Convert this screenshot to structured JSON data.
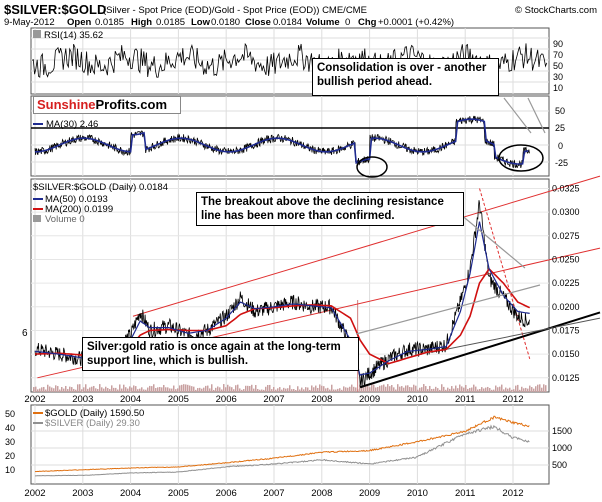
{
  "header": {
    "symbol": "$SILVER:$GOLD",
    "desc": " (Silver - Spot Price (EOD)/Gold - Spot Price (EOD)) CME/CME",
    "watermark": "© StockCharts.com",
    "date": "9-May-2012",
    "open_label": "Open",
    "open": "0.0185",
    "high_label": "High",
    "high": "0.0185",
    "low_label": "Low",
    "low": "0.0180",
    "close_label": "Close",
    "close": "0.0184",
    "volume_label": "Volume",
    "volume": "0",
    "chg_label": "Chg",
    "chg": "+0.0001 (+0.42%)"
  },
  "logo": {
    "part1": "Sunshine",
    "part2": "Profits.com"
  },
  "rsi_panel": {
    "legend": "RSI(14) 35.62",
    "ticks": [
      "90",
      "70",
      "50",
      "30",
      "10"
    ]
  },
  "macd_panel": {
    "legend": "MA(30) 2.46",
    "ticks": [
      "50",
      "25",
      "0",
      "-25"
    ]
  },
  "main_panel": {
    "legend_title": "$SILVER:$GOLD (Daily) 0.0184",
    "ma50": "MA(50) 0.0193",
    "ma200": "MA(200) 0.0199",
    "volume": "Volume 0",
    "left_tick": "6"
  },
  "bottom_panel": {
    "gold_legend": "$GOLD (Daily) 1590.50",
    "silver_legend": "$SILVER (Daily) 29.30",
    "ticks_left": [
      "50",
      "40",
      "30",
      "20",
      "10"
    ],
    "ticks_right": [
      "1500",
      "1000",
      "500"
    ]
  },
  "annotations": {
    "consolidation": "Consolidation is over - another bullish period ahead.",
    "breakout": "The breakout above the declining resistance line has been more than confirmed.",
    "support": "Silver:gold ratio is once again at the long-term support line, which is bullish."
  },
  "colors": {
    "gold": "#e07010",
    "silver": "#909090",
    "ma50": "#1e2a90",
    "ma200": "#d01010",
    "price": "#000000",
    "resistance": "#e02020"
  },
  "chart_data": {
    "type": "line",
    "title": "$SILVER:$GOLD",
    "x_ticks": [
      "2002",
      "2003",
      "2004",
      "2005",
      "2006",
      "2007",
      "2008",
      "2009",
      "2010",
      "2011",
      "2012"
    ],
    "y_ticks": [
      "0.0325",
      "0.0300",
      "0.0275",
      "0.0250",
      "0.0225",
      "0.0200",
      "0.0175",
      "0.0150",
      "0.0125"
    ],
    "ylim": [
      0.011,
      0.0335
    ],
    "x": [
      2002.0,
      2002.5,
      2003.0,
      2003.5,
      2004.0,
      2004.2,
      2004.4,
      2004.8,
      2005.2,
      2005.6,
      2006.0,
      2006.3,
      2006.6,
      2007.0,
      2007.4,
      2007.8,
      2008.2,
      2008.6,
      2008.8,
      2009.0,
      2009.4,
      2009.8,
      2010.2,
      2010.6,
      2010.9,
      2011.1,
      2011.3,
      2011.5,
      2011.8,
      2012.1,
      2012.35
    ],
    "series": [
      {
        "name": "$SILVER:$GOLD (Daily)",
        "values": [
          0.0155,
          0.015,
          0.0145,
          0.015,
          0.017,
          0.0195,
          0.0175,
          0.018,
          0.017,
          0.0175,
          0.019,
          0.021,
          0.0195,
          0.02,
          0.0205,
          0.02,
          0.02,
          0.016,
          0.012,
          0.013,
          0.0145,
          0.0155,
          0.0155,
          0.016,
          0.0205,
          0.024,
          0.031,
          0.023,
          0.021,
          0.019,
          0.0184
        ]
      },
      {
        "name": "MA(50)",
        "values": [
          0.0153,
          0.015,
          0.0146,
          0.0149,
          0.0165,
          0.0185,
          0.0178,
          0.0178,
          0.0172,
          0.0175,
          0.0188,
          0.0205,
          0.0198,
          0.02,
          0.0203,
          0.0201,
          0.0199,
          0.0165,
          0.0128,
          0.013,
          0.0143,
          0.0153,
          0.0155,
          0.0158,
          0.0195,
          0.0235,
          0.029,
          0.024,
          0.0212,
          0.0195,
          0.0193
        ]
      },
      {
        "name": "MA(200)",
        "values": [
          0.015,
          0.0151,
          0.0149,
          0.0148,
          0.0158,
          0.017,
          0.0175,
          0.0176,
          0.0175,
          0.0175,
          0.018,
          0.0192,
          0.0198,
          0.0199,
          0.0201,
          0.0202,
          0.0201,
          0.0188,
          0.0165,
          0.015,
          0.014,
          0.0146,
          0.0152,
          0.0155,
          0.017,
          0.019,
          0.0225,
          0.024,
          0.0225,
          0.0205,
          0.0199
        ]
      }
    ],
    "gold_silver_panel": {
      "x": [
        2002,
        2003,
        2004,
        2005,
        2006,
        2007,
        2008,
        2009,
        2010,
        2011,
        2011.6,
        2012,
        2012.35
      ],
      "gold": [
        300,
        350,
        400,
        430,
        550,
        680,
        850,
        900,
        1150,
        1450,
        1850,
        1700,
        1590
      ],
      "silver": [
        4.5,
        4.8,
        6.5,
        7.2,
        11,
        13,
        16,
        13,
        18,
        35,
        40,
        32,
        29.3
      ]
    }
  }
}
